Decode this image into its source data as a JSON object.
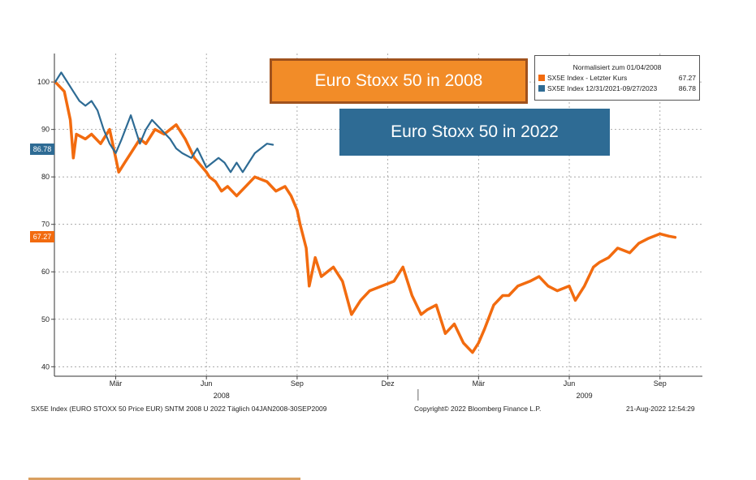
{
  "annotations": {
    "box_2008": "Euro Stoxx 50 in 2008",
    "box_2022": "Euro Stoxx 50 in 2022"
  },
  "legend": {
    "title": "Normalisiert zum 01/04/2008",
    "entries": [
      {
        "label": "SX5E Index - Letzter Kurs",
        "value": "67.27",
        "color": "#f26b0f"
      },
      {
        "label": "SX5E Index 12/31/2021-09/27/2023",
        "value": "86.78",
        "color": "#2e6b94"
      }
    ]
  },
  "last_value_tags": {
    "blue": "86.78",
    "orange": "67.27"
  },
  "footer": {
    "left": "SX5E Index (EURO STOXX 50 Price EUR) SNTM 2008 U 2022  Täglich 04JAN2008-30SEP2009",
    "center": "Copyright© 2022 Bloomberg Finance L.P.",
    "right": "21-Aug-2022 12:54:29"
  },
  "chart_data": {
    "type": "line",
    "ylim": [
      38,
      106
    ],
    "yticks": [
      40,
      50,
      60,
      70,
      80,
      90,
      100
    ],
    "xlim": [
      0,
      21
    ],
    "xticks": [
      {
        "pos": 2,
        "label": "Mär"
      },
      {
        "pos": 5,
        "label": "Jun"
      },
      {
        "pos": 8,
        "label": "Sep"
      },
      {
        "pos": 11,
        "label": "Dez"
      },
      {
        "pos": 14,
        "label": "Mär"
      },
      {
        "pos": 17,
        "label": "Jun"
      },
      {
        "pos": 20,
        "label": "Sep"
      }
    ],
    "year_labels": [
      {
        "pos": 5.5,
        "label": "2008"
      },
      {
        "pos": 17.5,
        "label": "2009"
      }
    ],
    "year_divider": 12,
    "grid": true,
    "series": [
      {
        "name": "SX5E Index - Letzter Kurs",
        "color": "#f26b0f",
        "x": [
          0,
          0.3,
          0.5,
          0.6,
          0.7,
          1.0,
          1.2,
          1.5,
          1.8,
          2.0,
          2.1,
          2.3,
          2.5,
          2.8,
          3.0,
          3.3,
          3.6,
          4.0,
          4.3,
          4.6,
          5.0,
          5.1,
          5.3,
          5.5,
          5.7,
          6.0,
          6.3,
          6.6,
          7.0,
          7.3,
          7.6,
          7.8,
          8.0,
          8.1,
          8.3,
          8.4,
          8.6,
          8.8,
          9.0,
          9.2,
          9.5,
          9.8,
          10.1,
          10.4,
          10.8,
          11.2,
          11.5,
          11.8,
          12.1,
          12.3,
          12.6,
          12.9,
          13.2,
          13.5,
          13.8,
          14.0,
          14.2,
          14.5,
          14.8,
          15.0,
          15.3,
          15.7,
          16.0,
          16.3,
          16.6,
          17.0,
          17.2,
          17.5,
          17.8,
          18.0,
          18.3,
          18.6,
          19.0,
          19.3,
          19.6,
          20.0,
          20.3,
          20.5
        ],
        "y": [
          100,
          98,
          92,
          84,
          89,
          88,
          89,
          87,
          90,
          84,
          81,
          83,
          85,
          88,
          87,
          90,
          89,
          91,
          88,
          84,
          81,
          80,
          79,
          77,
          78,
          76,
          78,
          80,
          79,
          77,
          78,
          76,
          73,
          70,
          65,
          57,
          63,
          59,
          60,
          61,
          58,
          51,
          54,
          56,
          57,
          58,
          61,
          55,
          51,
          52,
          53,
          47,
          49,
          45,
          43,
          45,
          48,
          53,
          55,
          55,
          57,
          58,
          59,
          57,
          56,
          57,
          54,
          57,
          61,
          62,
          63,
          65,
          64,
          66,
          67,
          68,
          67.5,
          67.27
        ]
      },
      {
        "name": "SX5E Index 12/31/2021-09/27/2023",
        "color": "#2e6b94",
        "x": [
          0,
          0.2,
          0.4,
          0.6,
          0.8,
          1.0,
          1.2,
          1.4,
          1.6,
          1.8,
          2.0,
          2.2,
          2.5,
          2.8,
          3.0,
          3.2,
          3.5,
          3.8,
          4.0,
          4.2,
          4.5,
          4.7,
          5.0,
          5.2,
          5.4,
          5.6,
          5.8,
          6.0,
          6.2,
          6.4,
          6.6,
          6.8,
          7.0,
          7.2
        ],
        "y": [
          100,
          102,
          100,
          98,
          96,
          95,
          96,
          94,
          90,
          87,
          85,
          88,
          93,
          87,
          90,
          92,
          90,
          88,
          86,
          85,
          84,
          86,
          82,
          83,
          84,
          83,
          81,
          83,
          81,
          83,
          85,
          86,
          87,
          86.78
        ]
      }
    ]
  }
}
